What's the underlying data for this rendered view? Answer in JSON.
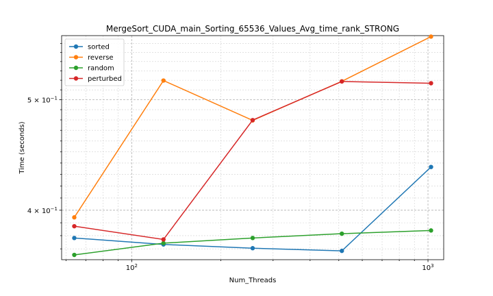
{
  "chart_data": {
    "type": "line",
    "title": "MergeSort_CUDA_main_Sorting_65536_Values_Avg_time_rank_STRONG",
    "xlabel": "Num_Threads",
    "ylabel": "Time (seconds)",
    "xscale": "log",
    "yscale": "log",
    "x": [
      64,
      128,
      256,
      512,
      1024
    ],
    "xlim": [
      58,
      1130
    ],
    "ylim": [
      0.362,
      0.569
    ],
    "grid": true,
    "legend_position": "top-left",
    "x_ticks": [
      {
        "value": 100,
        "base": "10",
        "exp": "2"
      },
      {
        "value": 1000,
        "base": "10",
        "exp": "3"
      }
    ],
    "y_ticks": [
      {
        "value": 0.4,
        "mant": "4",
        "base": "10",
        "exp": "−1"
      },
      {
        "value": 0.5,
        "mant": "5",
        "base": "10",
        "exp": "−1"
      }
    ],
    "series": [
      {
        "name": "sorted",
        "color": "#1f77b4",
        "values": [
          0.3782,
          0.3733,
          0.3705,
          0.3685,
          0.4365
        ]
      },
      {
        "name": "reverse",
        "color": "#ff7f0e",
        "values": [
          0.3943,
          0.5197,
          0.4795,
          0.5189,
          0.5679
        ]
      },
      {
        "name": "random",
        "color": "#2ca02c",
        "values": [
          0.3655,
          0.3743,
          0.3782,
          0.3815,
          0.384
        ]
      },
      {
        "name": "perturbed",
        "color": "#d62728",
        "values": [
          0.3873,
          0.3771,
          0.4798,
          0.5187,
          0.5169
        ]
      }
    ]
  }
}
